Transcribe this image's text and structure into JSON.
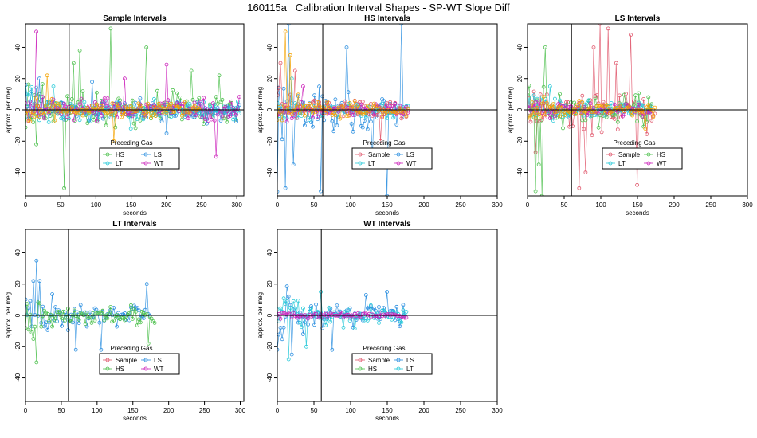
{
  "title": "160115a   Calibration Interval Shapes - SP-WT Slope Diff",
  "palette": {
    "Sample": "#e0566b",
    "HS": "#4cc04c",
    "LS": "#2b8fe0",
    "LT": "#28c9d8",
    "WT": "#cc22bb",
    "orange": "#f4a300",
    "axis": "#000000"
  },
  "chart_data": [
    {
      "type": "line",
      "title": "Sample Intervals",
      "xlabel": "seconds",
      "ylabel": "approx. per meg",
      "xlim": [
        0,
        310
      ],
      "ylim": [
        -55,
        55
      ],
      "xticks": [
        0,
        50,
        100,
        150,
        200,
        250,
        300
      ],
      "yticks": [
        -40,
        -20,
        0,
        20,
        40
      ],
      "vline": 62,
      "hline": 0,
      "legend": {
        "title": "Preceding Gas",
        "position": "bottom-center",
        "entries": [
          "HS",
          "LS",
          "LT",
          "WT"
        ]
      },
      "series": [
        {
          "name": "HS",
          "t_end": 302,
          "amp": 14,
          "seed": 11,
          "spikes": [
            [
              15,
              -22
            ],
            [
              55,
              -50
            ],
            [
              68,
              30
            ],
            [
              78,
              38
            ],
            [
              120,
              52
            ],
            [
              172,
              40
            ],
            [
              236,
              25
            ],
            [
              275,
              22
            ]
          ]
        },
        {
          "name": "LS",
          "t_end": 305,
          "amp": 9,
          "seed": 23,
          "spikes": [
            [
              20,
              20
            ],
            [
              95,
              18
            ],
            [
              200,
              -15
            ]
          ]
        },
        {
          "name": "LT",
          "t_end": 305,
          "amp": 8,
          "seed": 37,
          "spikes": [
            [
              40,
              15
            ],
            [
              150,
              -12
            ]
          ]
        },
        {
          "name": "WT",
          "t_end": 305,
          "amp": 8,
          "seed": 41,
          "spikes": [
            [
              15,
              50
            ],
            [
              200,
              29
            ],
            [
              270,
              -30
            ],
            [
              140,
              20
            ]
          ]
        },
        {
          "name": "orange",
          "t_end": 250,
          "amp": 6,
          "seed": 53,
          "spikes": [
            [
              30,
              22
            ],
            [
              125,
              -20
            ]
          ]
        }
      ]
    },
    {
      "type": "line",
      "title": "HS Intervals",
      "xlabel": "seconds",
      "ylabel": "approx. per meg",
      "xlim": [
        0,
        300
      ],
      "ylim": [
        -55,
        55
      ],
      "xticks": [
        0,
        50,
        100,
        150,
        200,
        250,
        300
      ],
      "yticks": [
        -40,
        -20,
        0,
        20,
        40
      ],
      "vline": 62,
      "hline": 0,
      "legend": {
        "title": "Preceding Gas",
        "position": "bottom-center",
        "entries": [
          "Sample",
          "LS",
          "LT",
          "WT"
        ]
      },
      "series": [
        {
          "name": "LS",
          "t_end": 175,
          "amp": 16,
          "seed": 71,
          "spikes": [
            [
              10,
              -50
            ],
            [
              15,
              55
            ],
            [
              22,
              -35
            ],
            [
              60,
              -52
            ],
            [
              95,
              40
            ],
            [
              150,
              -55
            ],
            [
              170,
              55
            ],
            [
              130,
              -30
            ]
          ]
        },
        {
          "name": "Sample",
          "t_end": 180,
          "amp": 8,
          "seed": 73,
          "spikes": [
            [
              5,
              30
            ],
            [
              25,
              25
            ],
            [
              140,
              -20
            ]
          ]
        },
        {
          "name": "LT",
          "t_end": 180,
          "amp": 6,
          "seed": 79,
          "spikes": [
            [
              20,
              20
            ]
          ]
        },
        {
          "name": "WT",
          "t_end": 180,
          "amp": 5,
          "seed": 83,
          "spikes": [
            [
              35,
              15
            ]
          ]
        },
        {
          "name": "orange",
          "t_end": 180,
          "amp": 6,
          "seed": 89,
          "spikes": [
            [
              12,
              50
            ],
            [
              18,
              35
            ]
          ]
        }
      ]
    },
    {
      "type": "line",
      "title": "LS Intervals",
      "xlabel": "seconds",
      "ylabel": "approx. per meg",
      "xlim": [
        0,
        300
      ],
      "ylim": [
        -55,
        55
      ],
      "xticks": [
        0,
        50,
        100,
        150,
        200,
        250,
        300
      ],
      "yticks": [
        -40,
        -20,
        0,
        20,
        40
      ],
      "vline": 60,
      "hline": 0,
      "legend": {
        "title": "Preceding Gas",
        "position": "bottom-center",
        "entries": [
          "Sample",
          "HS",
          "LT",
          "WT"
        ]
      },
      "series": [
        {
          "name": "Sample",
          "t_end": 175,
          "amp": 16,
          "seed": 101,
          "spikes": [
            [
              70,
              -50
            ],
            [
              90,
              40
            ],
            [
              100,
              55
            ],
            [
              110,
              52
            ],
            [
              140,
              48
            ],
            [
              150,
              -48
            ],
            [
              80,
              -40
            ],
            [
              120,
              30
            ]
          ]
        },
        {
          "name": "HS",
          "t_end": 170,
          "amp": 12,
          "seed": 103,
          "spikes": [
            [
              10,
              -52
            ],
            [
              20,
              -55
            ],
            [
              25,
              40
            ],
            [
              15,
              -35
            ]
          ]
        },
        {
          "name": "LT",
          "t_end": 170,
          "amp": 6,
          "seed": 107,
          "spikes": [
            [
              30,
              15
            ]
          ]
        },
        {
          "name": "WT",
          "t_end": 170,
          "amp": 5,
          "seed": 109,
          "spikes": []
        },
        {
          "name": "orange",
          "t_end": 175,
          "amp": 5,
          "seed": 113,
          "spikes": [
            [
              160,
              -12
            ]
          ]
        }
      ]
    },
    {
      "type": "line",
      "title": "LT Intervals",
      "xlabel": "seconds",
      "ylabel": "approx. per meg",
      "xlim": [
        0,
        305
      ],
      "ylim": [
        -55,
        55
      ],
      "xticks": [
        0,
        50,
        100,
        150,
        200,
        250,
        300
      ],
      "yticks": [
        -40,
        -20,
        0,
        20,
        40
      ],
      "vline": 60,
      "hline": 0,
      "legend": {
        "title": "Preceding Gas",
        "position": "bottom-center",
        "entries": [
          "Sample",
          "LS",
          "HS",
          "WT"
        ]
      },
      "series": [
        {
          "name": "LS",
          "t_end": 175,
          "amp": 9,
          "seed": 131,
          "spikes": [
            [
              10,
              22
            ],
            [
              15,
              35
            ],
            [
              20,
              22
            ],
            [
              70,
              -22
            ],
            [
              105,
              -22
            ],
            [
              170,
              20
            ]
          ]
        },
        {
          "name": "HS",
          "t_end": 182,
          "amp": 8,
          "seed": 137,
          "spikes": [
            [
              15,
              -30
            ],
            [
              12,
              -15
            ],
            [
              172,
              -18
            ]
          ]
        }
      ]
    },
    {
      "type": "line",
      "title": "WT Intervals",
      "xlabel": "seconds",
      "ylabel": "approx. per meg",
      "xlim": [
        0,
        300
      ],
      "ylim": [
        -55,
        55
      ],
      "xticks": [
        0,
        50,
        100,
        150,
        200,
        250,
        300
      ],
      "yticks": [
        -40,
        -20,
        0,
        20,
        40
      ],
      "vline": 60,
      "hline": 0,
      "legend": {
        "title": "Preceding Gas",
        "position": "bottom-center",
        "entries": [
          "Sample",
          "LS",
          "HS",
          "LT"
        ]
      },
      "series": [
        {
          "name": "LS",
          "t_end": 175,
          "amp": 9,
          "seed": 151,
          "spikes": [
            [
              0,
              -22
            ],
            [
              15,
              12
            ],
            [
              20,
              -25
            ],
            [
              75,
              -22
            ],
            [
              120,
              13
            ],
            [
              150,
              15
            ]
          ]
        },
        {
          "name": "LT",
          "t_end": 178,
          "amp": 8,
          "seed": 157,
          "spikes": [
            [
              15,
              -28
            ],
            [
              60,
              15
            ],
            [
              40,
              -20
            ]
          ]
        },
        {
          "name": "WT",
          "t_end": 178,
          "amp": 2,
          "seed": 163,
          "spikes": []
        }
      ]
    }
  ]
}
